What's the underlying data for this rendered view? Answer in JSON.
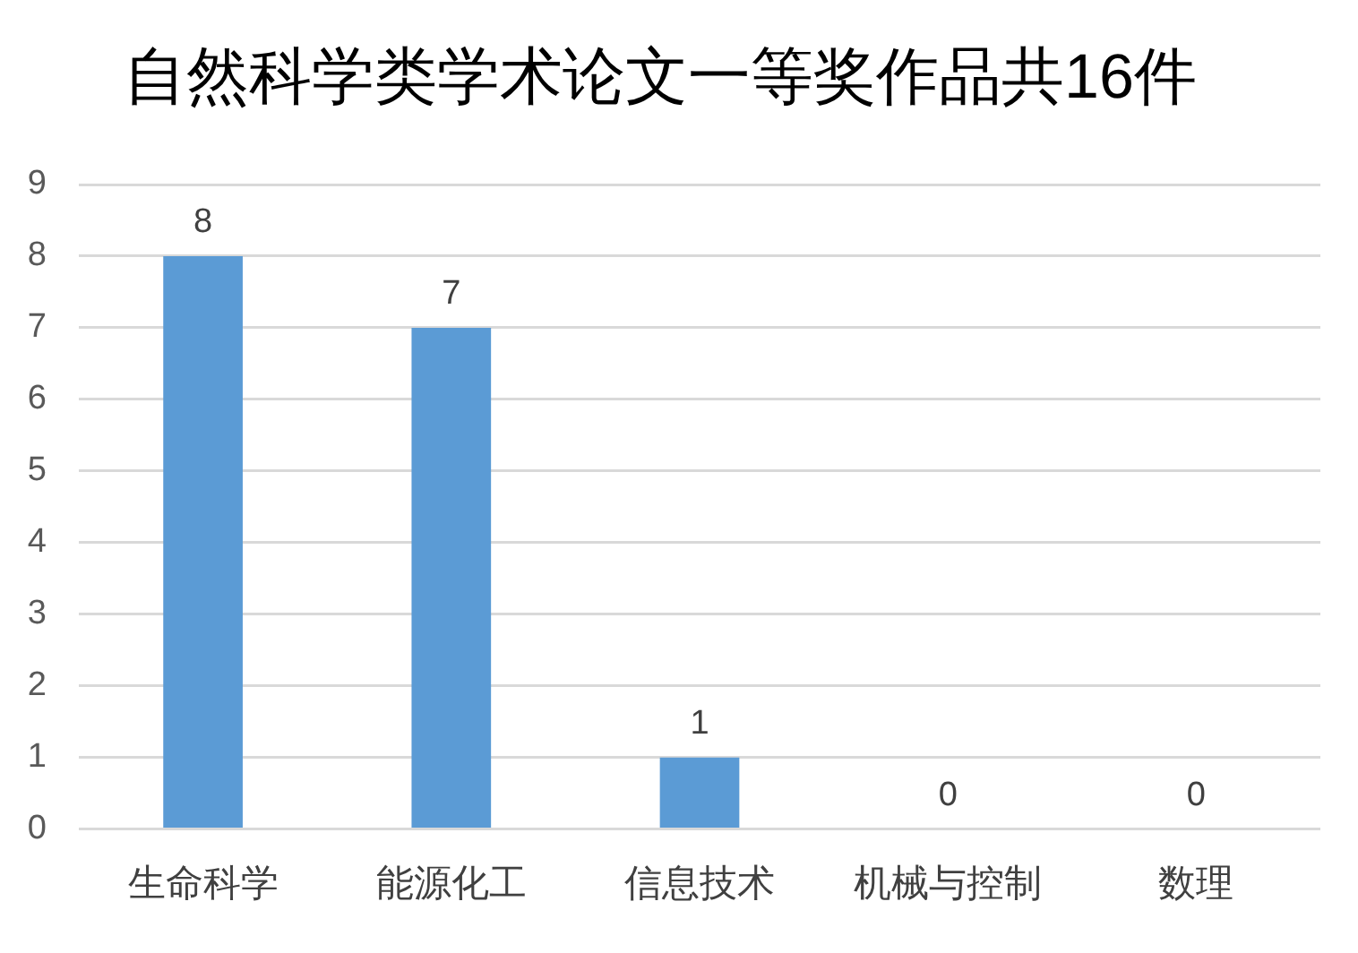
{
  "chart_data": {
    "type": "bar",
    "title": "自然科学类学术论文一等奖作品共16件",
    "categories": [
      "生命科学",
      "能源化工",
      "信息技术",
      "机械与控制",
      "数理"
    ],
    "values": [
      8,
      7,
      1,
      0,
      0
    ],
    "color": "#5b9bd5",
    "ylim": [
      0,
      9
    ],
    "yticks": [
      0,
      1,
      2,
      3,
      4,
      5,
      6,
      7,
      8,
      9
    ],
    "grid": "y",
    "data_labels": true,
    "legend": false
  }
}
